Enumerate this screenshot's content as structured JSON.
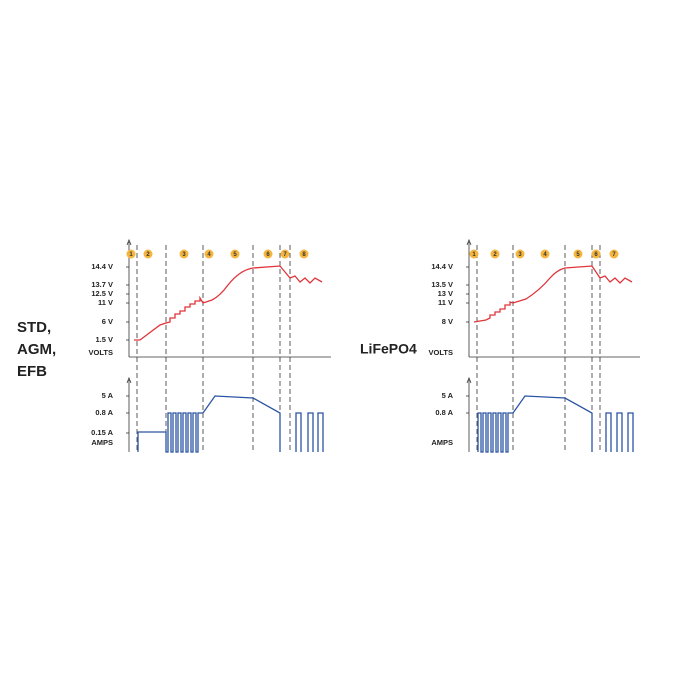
{
  "panels": [
    {
      "label": [
        "STD,",
        "AGM,",
        "EFB"
      ],
      "volt_ticks": [
        "14.4 V",
        "13.7 V",
        "12.5 V",
        "11 V",
        "6 V",
        "1.5 V"
      ],
      "volt_axis": "VOLTS",
      "amp_ticks": [
        "5 A",
        "0.8 A",
        "0.15 A"
      ],
      "amp_axis": "AMPS",
      "steps": [
        "1",
        "2",
        "3",
        "4",
        "5",
        "6",
        "7",
        "8"
      ]
    },
    {
      "label": [
        "LiFePO4"
      ],
      "volt_ticks": [
        "14.4 V",
        "13.5 V",
        "13 V",
        "11 V",
        "8 V"
      ],
      "volt_axis": "VOLTS",
      "amp_ticks": [
        "5 A",
        "0.8 A"
      ],
      "amp_axis": "AMPS",
      "steps": [
        "1",
        "2",
        "3",
        "4",
        "5",
        "6",
        "7"
      ]
    }
  ]
}
